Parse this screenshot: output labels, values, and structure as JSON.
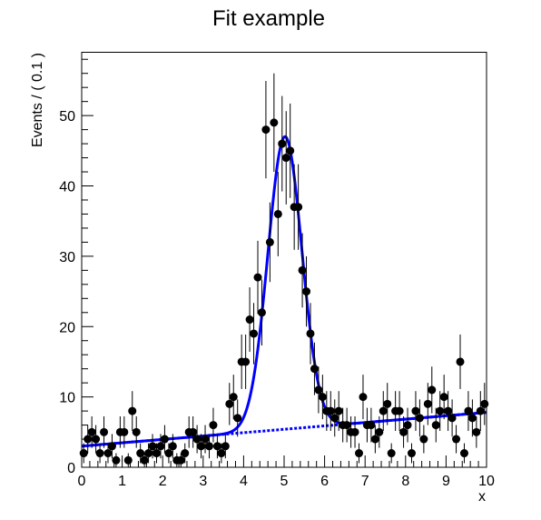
{
  "chart_data": {
    "type": "scatter",
    "title": "Fit example",
    "xlabel": "x",
    "ylabel": "Events / ( 0.1 )",
    "xlim": [
      0,
      10
    ],
    "ylim": [
      0,
      59
    ],
    "x_ticks": [
      0,
      1,
      2,
      3,
      4,
      5,
      6,
      7,
      8,
      9,
      10
    ],
    "y_ticks": [
      0,
      10,
      20,
      30,
      40,
      50
    ],
    "grid": false,
    "legend": "none",
    "colors": {
      "points": "#000000",
      "fit": "#0000ff",
      "frame": "#000000"
    },
    "series": [
      {
        "kind": "points-with-error-bars",
        "x": [
          0.05,
          0.15,
          0.25,
          0.35,
          0.45,
          0.55,
          0.65,
          0.75,
          0.85,
          0.95,
          1.05,
          1.15,
          1.25,
          1.35,
          1.45,
          1.55,
          1.65,
          1.75,
          1.85,
          1.95,
          2.05,
          2.15,
          2.25,
          2.35,
          2.45,
          2.55,
          2.65,
          2.75,
          2.85,
          2.95,
          3.05,
          3.15,
          3.25,
          3.35,
          3.45,
          3.55,
          3.65,
          3.75,
          3.85,
          3.95,
          4.05,
          4.15,
          4.25,
          4.35,
          4.45,
          4.55,
          4.65,
          4.75,
          4.85,
          4.95,
          5.05,
          5.15,
          5.25,
          5.35,
          5.45,
          5.55,
          5.65,
          5.75,
          5.85,
          5.95,
          6.05,
          6.15,
          6.25,
          6.35,
          6.45,
          6.55,
          6.65,
          6.75,
          6.85,
          6.95,
          7.05,
          7.15,
          7.25,
          7.35,
          7.45,
          7.55,
          7.65,
          7.75,
          7.85,
          7.95,
          8.05,
          8.15,
          8.25,
          8.35,
          8.45,
          8.55,
          8.65,
          8.75,
          8.85,
          8.95,
          9.05,
          9.15,
          9.25,
          9.35,
          9.45,
          9.55,
          9.65,
          9.75,
          9.85,
          9.95
        ],
        "y": [
          2,
          4,
          5,
          4,
          2,
          5,
          2,
          3,
          1,
          5,
          5,
          1,
          8,
          5,
          2,
          1,
          2,
          3,
          2,
          3,
          4,
          2,
          3,
          1,
          1,
          2,
          5,
          5,
          4,
          3,
          4,
          3,
          6,
          3,
          2,
          3,
          9,
          10,
          7,
          15,
          15,
          21,
          19,
          27,
          22,
          48,
          32,
          49,
          36,
          46,
          44,
          45,
          37,
          37,
          28,
          25,
          19,
          14,
          11,
          10,
          8,
          8,
          7,
          8,
          6,
          6,
          5,
          5,
          2,
          10,
          6,
          6,
          4,
          5,
          8,
          9,
          2,
          8,
          8,
          5,
          6,
          2,
          8,
          7,
          4,
          9,
          11,
          6,
          8,
          10,
          8,
          7,
          4,
          15,
          2,
          8,
          7,
          5,
          8,
          9
        ],
        "error": "sqrt"
      },
      {
        "kind": "fit-total",
        "line_style": "solid",
        "model": "gaussian-plus-linear",
        "mean": 5.02,
        "sigma": 0.42,
        "signal_peak": 41.6,
        "background_at_0": 3.0,
        "background_at_10": 7.8
      },
      {
        "kind": "fit-background",
        "line_style": "dashed",
        "model": "linear",
        "background_at_0": 3.0,
        "background_at_10": 7.8
      }
    ]
  }
}
